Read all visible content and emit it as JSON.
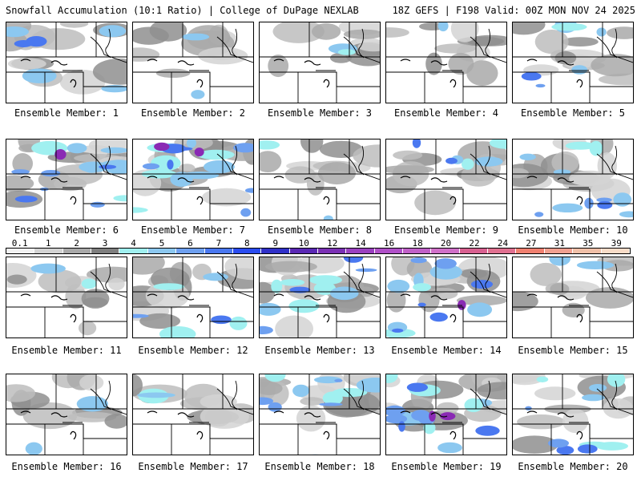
{
  "header": {
    "left": "Snowfall Accumulation (10:1 Ratio) | College of DuPage NEXLAB",
    "right": "18Z GEFS | F198 Valid: 00Z MON NOV 24 2025"
  },
  "members": [
    {
      "label": "Ensemble Member: 1",
      "snow_intensity": "light-moderate"
    },
    {
      "label": "Ensemble Member: 2",
      "snow_intensity": "light"
    },
    {
      "label": "Ensemble Member: 3",
      "snow_intensity": "light"
    },
    {
      "label": "Ensemble Member: 4",
      "snow_intensity": "light"
    },
    {
      "label": "Ensemble Member: 5",
      "snow_intensity": "light-moderate"
    },
    {
      "label": "Ensemble Member: 6",
      "snow_intensity": "moderate-heavy"
    },
    {
      "label": "Ensemble Member: 7",
      "snow_intensity": "heavy"
    },
    {
      "label": "Ensemble Member: 8",
      "snow_intensity": "light"
    },
    {
      "label": "Ensemble Member: 9",
      "snow_intensity": "light-moderate"
    },
    {
      "label": "Ensemble Member: 10",
      "snow_intensity": "moderate"
    },
    {
      "label": "Ensemble Member: 11",
      "snow_intensity": "light"
    },
    {
      "label": "Ensemble Member: 12",
      "snow_intensity": "light-moderate"
    },
    {
      "label": "Ensemble Member: 13",
      "snow_intensity": "moderate"
    },
    {
      "label": "Ensemble Member: 14",
      "snow_intensity": "moderate-heavy"
    },
    {
      "label": "Ensemble Member: 15",
      "snow_intensity": "light"
    },
    {
      "label": "Ensemble Member: 16",
      "snow_intensity": "light"
    },
    {
      "label": "Ensemble Member: 17",
      "snow_intensity": "light"
    },
    {
      "label": "Ensemble Member: 18",
      "snow_intensity": "moderate"
    },
    {
      "label": "Ensemble Member: 19",
      "snow_intensity": "heavy"
    },
    {
      "label": "Ensemble Member: 20",
      "snow_intensity": "moderate"
    }
  ],
  "colorbar": {
    "ticks": [
      "0.1",
      "1",
      "2",
      "3",
      "4",
      "5",
      "6",
      "7",
      "8",
      "9",
      "10",
      "12",
      "14",
      "16",
      "18",
      "20",
      "22",
      "24",
      "27",
      "31",
      "35",
      "39"
    ],
    "colors": [
      "#f2f2f2",
      "#d3d3d3",
      "#a9a9a9",
      "#7f7f7f",
      "#a0f0f0",
      "#8cc8f0",
      "#6ea0f0",
      "#4a78f0",
      "#2a4cf0",
      "#3030c8",
      "#5a28b4",
      "#7a30b4",
      "#9a40c0",
      "#b050c8",
      "#c060c8",
      "#d070c8",
      "#d86090",
      "#e07090",
      "#f08070",
      "#f0a090",
      "#f0c0a8",
      "#f8dcc8"
    ]
  }
}
